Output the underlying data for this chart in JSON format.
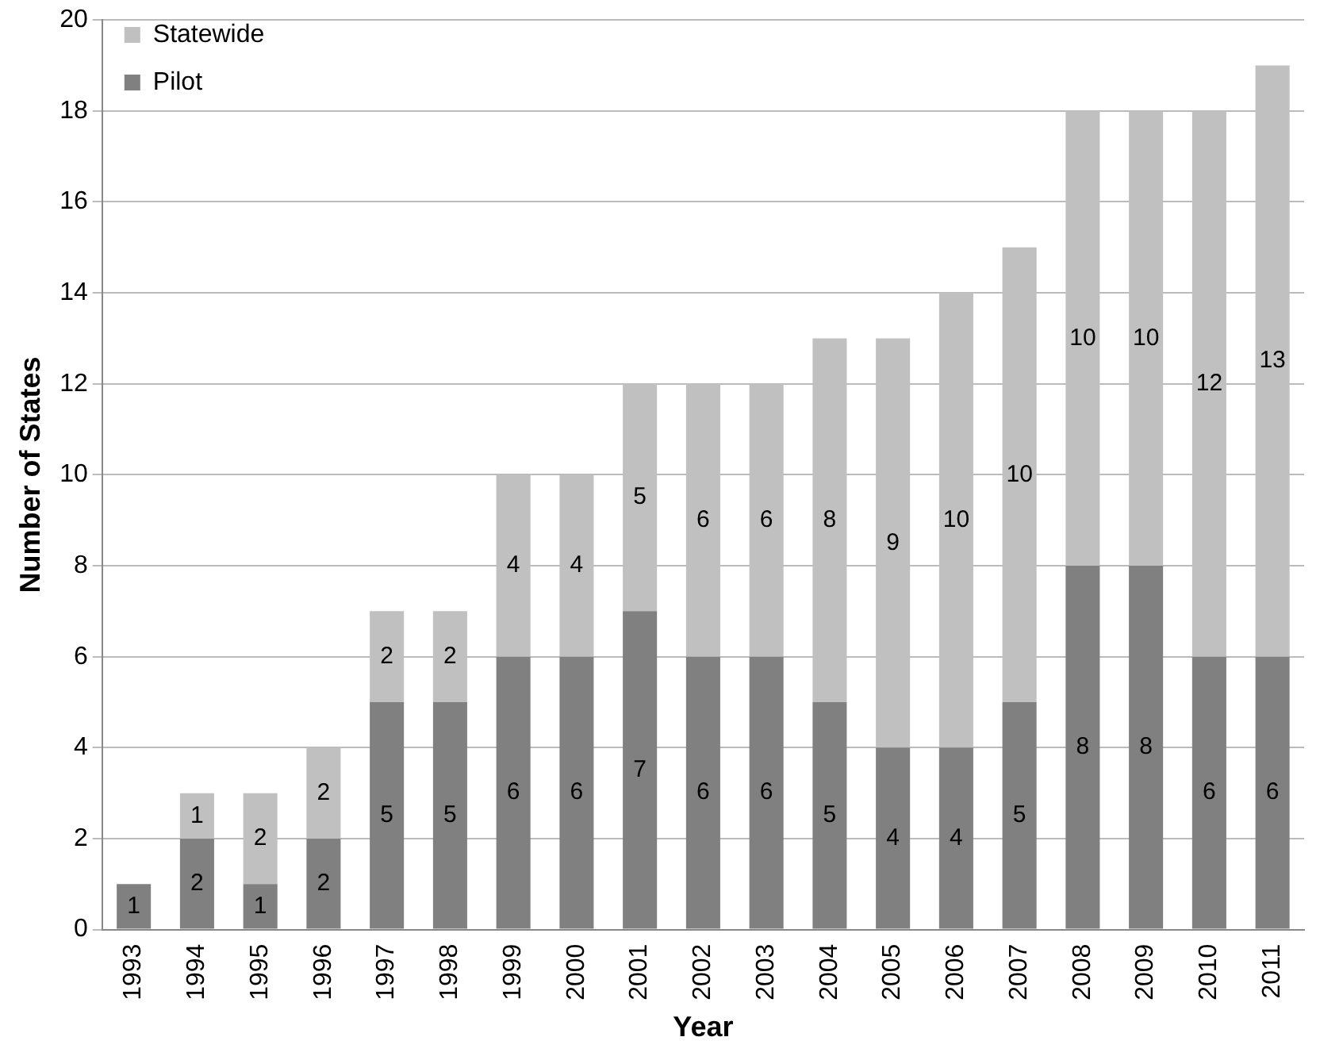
{
  "chart_data": {
    "type": "bar",
    "xlabel": "Year",
    "ylabel": "Number of States",
    "stacked": true,
    "categories": [
      "1993",
      "1994",
      "1995",
      "1996",
      "1997",
      "1998",
      "1999",
      "2000",
      "2001",
      "2002",
      "2003",
      "2004",
      "2005",
      "2006",
      "2007",
      "2008",
      "2009",
      "2010",
      "2011"
    ],
    "series": [
      {
        "name": "Pilot",
        "color": "#808080",
        "values": [
          1,
          2,
          1,
          2,
          5,
          5,
          6,
          6,
          7,
          6,
          6,
          5,
          4,
          4,
          5,
          8,
          8,
          6,
          6
        ]
      },
      {
        "name": "Statewide",
        "color": "#c0c0c0",
        "values": [
          null,
          1,
          2,
          2,
          2,
          2,
          4,
          4,
          5,
          6,
          6,
          8,
          9,
          10,
          10,
          10,
          10,
          12,
          13
        ]
      }
    ],
    "ylim": [
      0,
      20
    ],
    "yticks": [
      0,
      2,
      4,
      6,
      8,
      10,
      12,
      14,
      16,
      18,
      20
    ],
    "grid": "y",
    "legend": "top left",
    "data_labels": true
  }
}
